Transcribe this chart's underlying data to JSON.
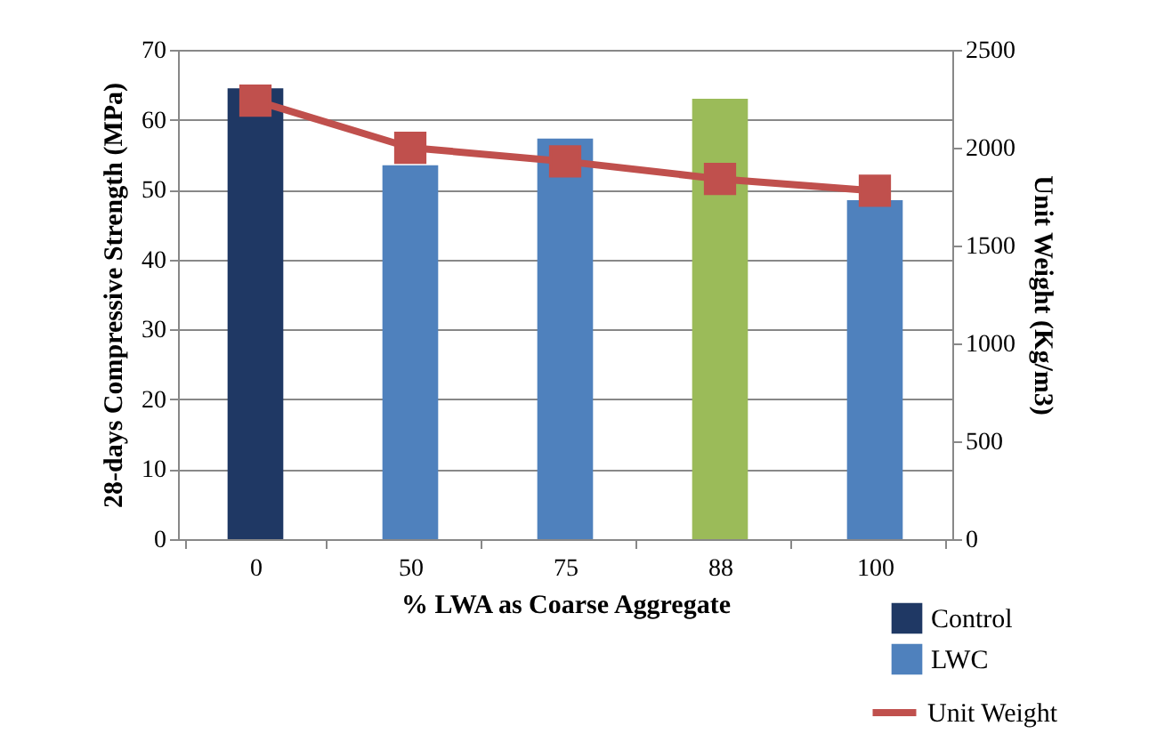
{
  "chart_data": {
    "type": "bar",
    "xlabel": "% LWA as Coarse Aggregate",
    "ylabel": "28-days Compressive Strength (MPa)",
    "y2label": "Unit Weight (Kg/m3)",
    "categories": [
      "0",
      "50",
      "75",
      "88",
      "100"
    ],
    "series": [
      {
        "name": "Control",
        "color": "#1f3864",
        "values": [
          64.5,
          null,
          null,
          null,
          null
        ]
      },
      {
        "name": "LWC",
        "color": "#4f81bd",
        "values": [
          null,
          53.5,
          57.3,
          null,
          48.5
        ]
      },
      {
        "color": "#9bbb59",
        "values": [
          null,
          null,
          null,
          63,
          null
        ]
      },
      {
        "name": "Unit Weight",
        "type": "line",
        "axis": "y2",
        "color": "#c0504d",
        "marker": "square",
        "values": [
          2240,
          2000,
          1930,
          1840,
          1780
        ]
      }
    ],
    "ylim": [
      0,
      70
    ],
    "yticks": [
      0,
      10,
      20,
      30,
      40,
      50,
      60,
      70
    ],
    "y2lim": [
      0,
      2500
    ],
    "y2ticks": [
      0,
      500,
      1000,
      1500,
      2000,
      2500
    ],
    "grid": "y",
    "legend": "bottom right"
  }
}
